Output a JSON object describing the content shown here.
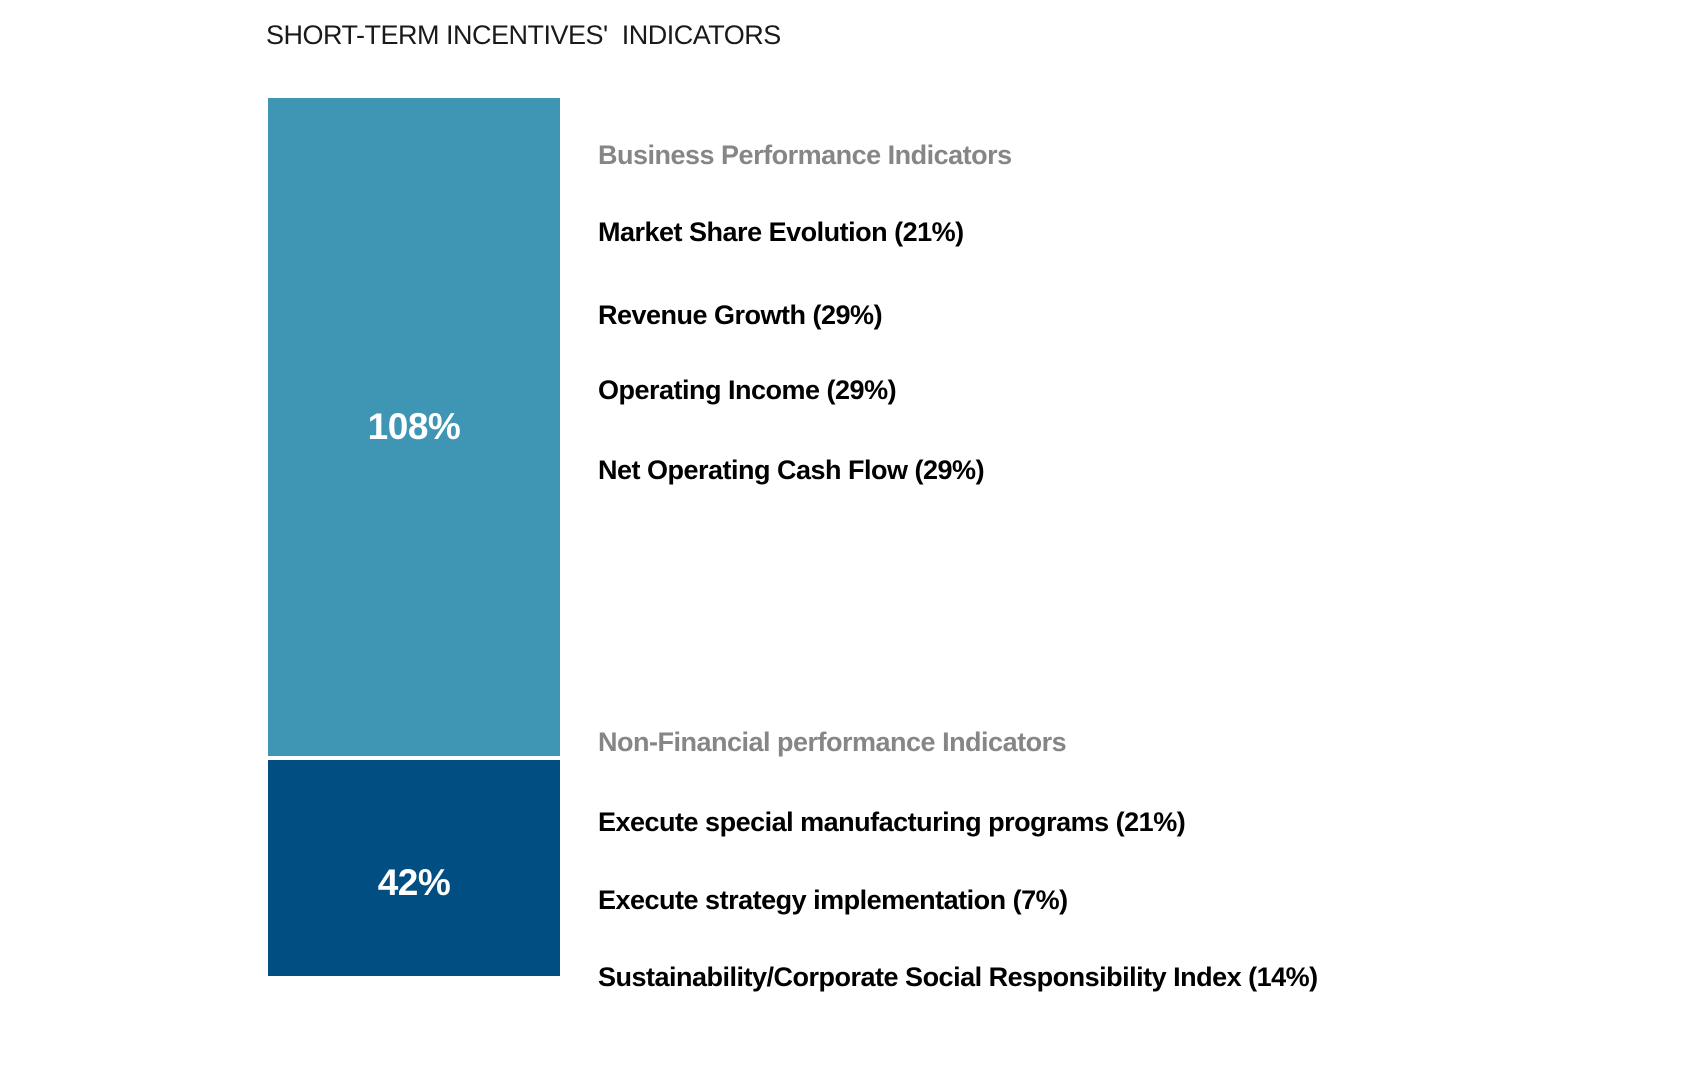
{
  "title": "SHORT-TERM INCENTIVES'  INDICATORS",
  "colors": {
    "business_segment": "#3E96B4",
    "non_financial_segment": "#004E82",
    "section_header_text": "#868686",
    "indicator_text": "#000000",
    "value_text": "#FFFFFF",
    "background": "#FFFFFF"
  },
  "chart_data": {
    "type": "bar",
    "stacked": true,
    "orientation": "vertical",
    "title": "SHORT-TERM INCENTIVES'  INDICATORS",
    "grid": false,
    "axes_visible": false,
    "legend_position": "right-of-bar",
    "series": [
      {
        "name": "Business Performance Indicators",
        "value_pct": 108,
        "value_label": "108%",
        "color": "#3E96B4",
        "indicators": [
          {
            "label": "Market Share Evolution (21%)",
            "weight_pct": 21
          },
          {
            "label": "Revenue Growth (29%)",
            "weight_pct": 29
          },
          {
            "label": "Operating Income (29%)",
            "weight_pct": 29
          },
          {
            "label": "Net Operating Cash Flow (29%)",
            "weight_pct": 29
          }
        ]
      },
      {
        "name": "Non-Financial performance Indicators",
        "value_pct": 42,
        "value_label": "42%",
        "color": "#004E82",
        "indicators": [
          {
            "label": "Execute special manufacturing programs (21%)",
            "weight_pct": 21
          },
          {
            "label": "Execute strategy implementation (7%)",
            "weight_pct": 7
          },
          {
            "label": "Sustainability/Corporate Social Responsibility Index (14%)",
            "weight_pct": 14
          }
        ]
      }
    ]
  }
}
